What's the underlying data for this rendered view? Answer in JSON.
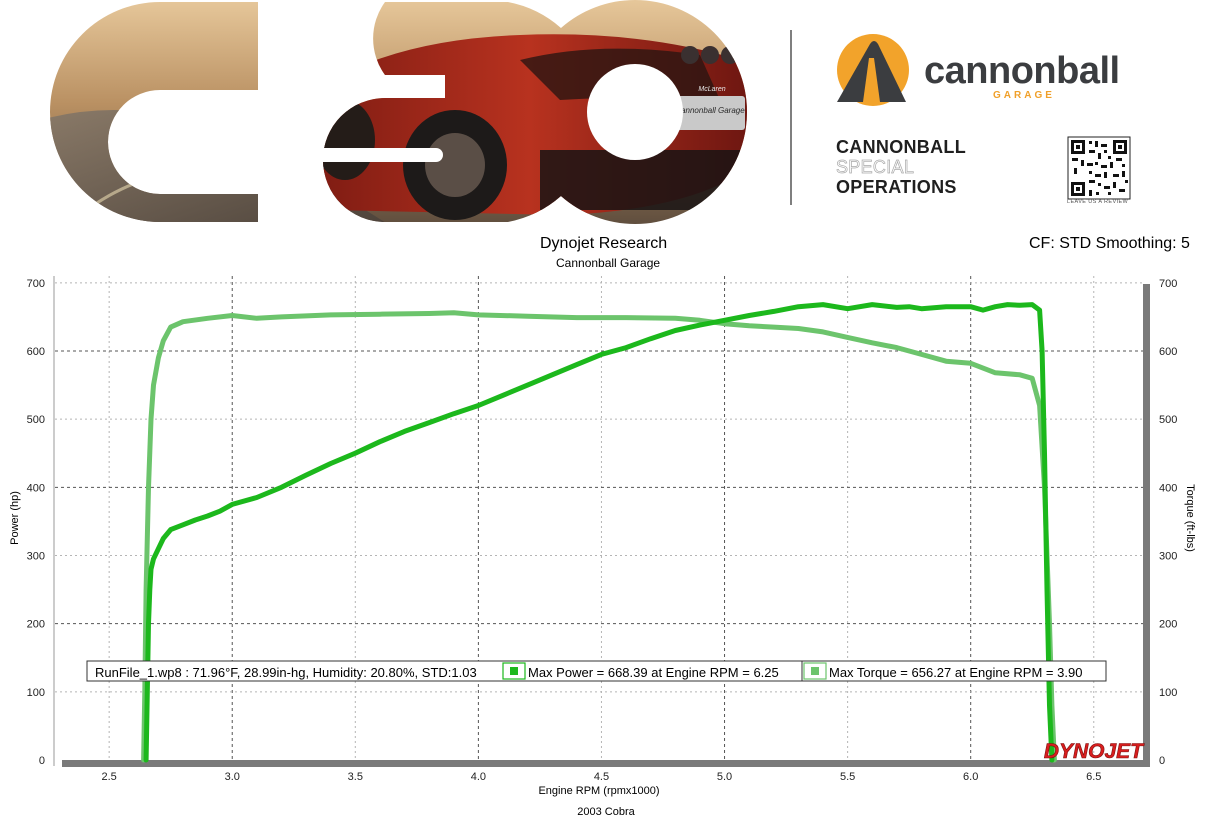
{
  "banner": {
    "brand_name": "cannonball",
    "brand_sub": "GARAGE",
    "special_ops": [
      "CANNONBALL",
      "SPECIAL",
      "OPERATIONS"
    ],
    "qr_caption": "LEAVE US A REVIEW",
    "logo_letters": "cso",
    "car_plate": "Cannonball Garage",
    "car_badge": "McLaren",
    "colors": {
      "brand_orange": "#f2a32b",
      "brand_gray": "#3b3d40"
    }
  },
  "header": {
    "title": "Dynojet Research",
    "subtitle": "Cannonball Garage",
    "cf_text": "CF: STD Smoothing: 5"
  },
  "chart_data": {
    "type": "line",
    "title": "Dynojet Research",
    "subtitle": "Cannonball Garage",
    "xlabel": "Engine RPM (rpmx1000)",
    "ylabel": "Power (hp)",
    "y2label": "Torque (ft-lbs)",
    "footer": "2003 Cobra",
    "xlim": [
      2.28,
      6.7
    ],
    "ylim": [
      0,
      710
    ],
    "x_ticks": [
      "2.5",
      "3.0",
      "3.5",
      "4.0",
      "4.5",
      "5.0",
      "5.5",
      "6.0",
      "6.5"
    ],
    "y_ticks": [
      "0",
      "100",
      "200",
      "300",
      "400",
      "500",
      "600",
      "700"
    ],
    "grid": true,
    "watermark": "DYNOJET",
    "legend": {
      "run_info": "RunFile_1.wp8  : 71.96°F, 28.99in-hg, Humidity: 20.80%, STD:1.03",
      "power_entry": "Max Power = 668.39 at Engine RPM = 6.25",
      "torque_entry": "Max Torque = 656.27 at Engine RPM = 3.90",
      "placement": "bottom"
    },
    "series": [
      {
        "name": "Power",
        "color": "#1cb81c",
        "x": [
          2.65,
          2.655,
          2.66,
          2.665,
          2.67,
          2.68,
          2.7,
          2.72,
          2.75,
          2.8,
          2.85,
          2.9,
          2.95,
          3.0,
          3.1,
          3.2,
          3.3,
          3.4,
          3.5,
          3.6,
          3.7,
          3.8,
          3.9,
          4.0,
          4.1,
          4.2,
          4.3,
          4.4,
          4.5,
          4.6,
          4.7,
          4.8,
          4.9,
          5.0,
          5.1,
          5.2,
          5.3,
          5.4,
          5.5,
          5.6,
          5.7,
          5.75,
          5.8,
          5.9,
          6.0,
          6.05,
          6.1,
          6.15,
          6.2,
          6.25,
          6.28,
          6.29,
          6.3,
          6.31,
          6.32,
          6.33
        ],
        "y": [
          0,
          100,
          200,
          250,
          280,
          295,
          310,
          325,
          338,
          345,
          352,
          358,
          365,
          375,
          385,
          400,
          418,
          435,
          450,
          467,
          482,
          495,
          508,
          520,
          535,
          550,
          565,
          580,
          595,
          605,
          618,
          630,
          638,
          645,
          652,
          658,
          665,
          668,
          662,
          668,
          664,
          665,
          662,
          665,
          665,
          660,
          665,
          668,
          667,
          668,
          660,
          600,
          450,
          250,
          80,
          0
        ]
      },
      {
        "name": "Torque",
        "color": "#6cc46c",
        "x": [
          2.64,
          2.645,
          2.65,
          2.66,
          2.67,
          2.68,
          2.7,
          2.72,
          2.75,
          2.8,
          2.9,
          3.0,
          3.1,
          3.2,
          3.4,
          3.6,
          3.8,
          3.9,
          4.0,
          4.2,
          4.4,
          4.6,
          4.8,
          4.9,
          5.0,
          5.1,
          5.2,
          5.3,
          5.4,
          5.5,
          5.6,
          5.7,
          5.8,
          5.9,
          6.0,
          6.1,
          6.2,
          6.25,
          6.28,
          6.3,
          6.32,
          6.33,
          6.34
        ],
        "y": [
          0,
          100,
          250,
          400,
          500,
          550,
          590,
          615,
          635,
          643,
          648,
          652,
          648,
          650,
          653,
          654,
          655,
          656,
          653,
          651,
          649,
          649,
          648,
          645,
          640,
          637,
          635,
          633,
          628,
          620,
          612,
          605,
          595,
          585,
          582,
          568,
          565,
          560,
          520,
          400,
          200,
          80,
          0
        ]
      }
    ]
  }
}
